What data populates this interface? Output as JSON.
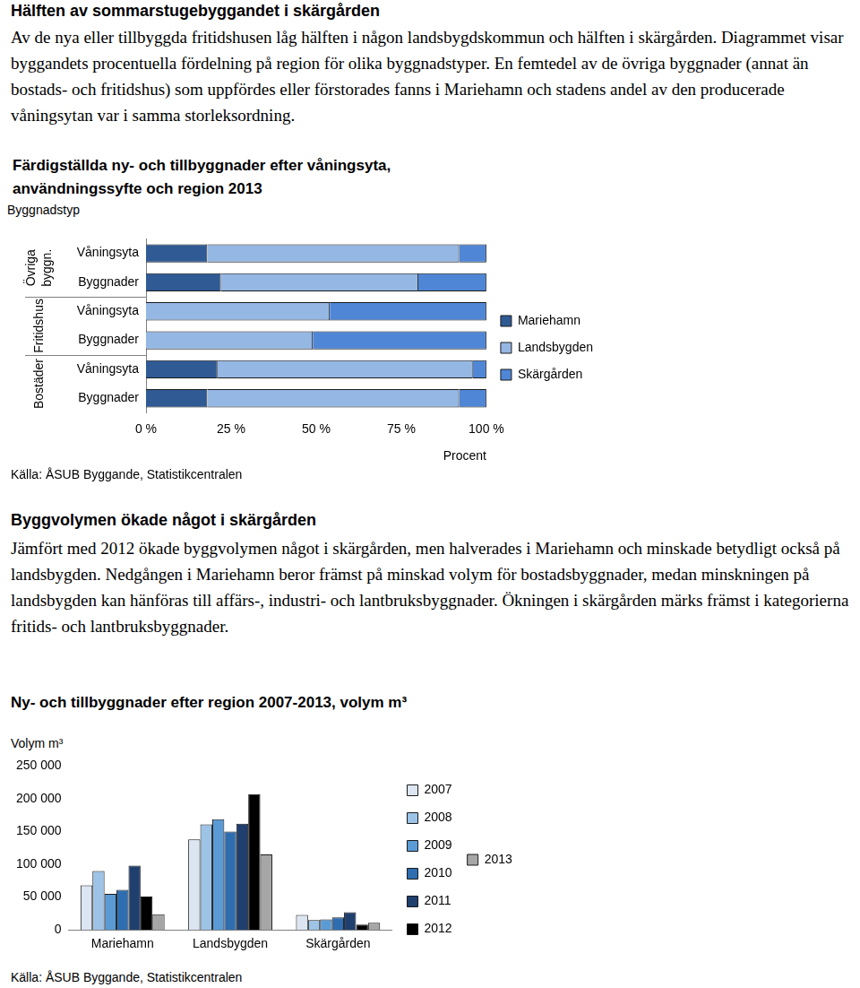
{
  "document": {
    "heading1": "Hälften av sommarstugebyggandet i skärgården",
    "paragraph1": "Av de nya eller tillbyggda fritidshusen låg hälften i någon landsbygdskommun och hälften i skärgården. Diagrammet visar byggandets procentuella fördelning på region för olika byggnadstyper. En femtedel av de övriga byggnader (annat än bostads- och fritidshus) som uppfördes eller förstorades fanns i Mariehamn och stadens andel av den producerade våningsytan var i samma storleksordning.",
    "heading2": "Byggvolymen ökade något i skärgården",
    "paragraph2": "Jämfört med 2012 ökade byggvolymen något i skärgården, men halverades i Mariehamn och minskade betydligt också på landsbygden. Nedgången i Mariehamn beror främst på minskad volym för bostadsbyggnader, medan minskningen på landsbygden kan hänföras till affärs-, industri- och lantbruksbyggnader. Ökningen i skärgården märks främst i kategorierna fritids- och lantbruksbyggnader."
  },
  "chart_data": [
    {
      "type": "bar",
      "title": [
        "Färdigställda ny- och tillbyggnader efter våningsyta,",
        "användningssyfte och region 2013"
      ],
      "ylabel": "Byggnadstyp",
      "xlabel": "Procent",
      "source": "Källa: ÅSUB Byggande, Statistikcentralen",
      "orientation": "horizontal",
      "stacked": true,
      "grid": false,
      "legend": "right",
      "categories": [
        "Våningsyta",
        "Byggnader",
        "Våningsyta",
        "Byggnader",
        "Våningsyta",
        "Byggnader"
      ],
      "groups": [
        "Övriga byggn.",
        "Övriga byggn.",
        "Fritidshus",
        "Fritidshus",
        "Bostäder",
        "Bostäder"
      ],
      "series": [
        {
          "name": "Mariehamn",
          "color": "#2f5a94",
          "values": [
            18,
            22,
            0,
            0,
            21,
            18
          ]
        },
        {
          "name": "Landsbygden",
          "color": "#95b7e3",
          "values": [
            74,
            58,
            54,
            49,
            75,
            74
          ]
        },
        {
          "name": "Skärgården",
          "color": "#4f86d6",
          "values": [
            8,
            20,
            46,
            51,
            4,
            8
          ]
        }
      ],
      "xlim": [
        0,
        100
      ],
      "xticks": [
        {
          "value": 0,
          "label": "0 %"
        },
        {
          "value": 25,
          "label": "25 %"
        },
        {
          "value": 50,
          "label": "50 %"
        },
        {
          "value": 75,
          "label": "75 %"
        },
        {
          "value": 100,
          "label": "100 %"
        }
      ]
    },
    {
      "type": "bar",
      "title": [
        "Ny- och tillbyggnader efter region 2007-2013, volym m³"
      ],
      "ylabel": "Volym m³",
      "source": "Källa: ÅSUB Byggande, Statistikcentralen",
      "grid": false,
      "legend": "right",
      "categories": [
        "Mariehamn",
        "Landsbygden",
        "Skärgården"
      ],
      "series": [
        {
          "name": "2007",
          "color": "#dce6f2",
          "values": [
            68000,
            138000,
            23000
          ]
        },
        {
          "name": "2008",
          "color": "#9dc3e6",
          "values": [
            90000,
            161000,
            15000
          ]
        },
        {
          "name": "2009",
          "color": "#5b9bd5",
          "values": [
            55000,
            169000,
            16000
          ]
        },
        {
          "name": "2010",
          "color": "#2e6db0",
          "values": [
            61000,
            150000,
            19000
          ]
        },
        {
          "name": "2011",
          "color": "#1f3f6e",
          "values": [
            98000,
            162000,
            27000
          ]
        },
        {
          "name": "2012",
          "color": "#000000",
          "values": [
            51000,
            207000,
            8000
          ]
        },
        {
          "name": "2013",
          "color": "#a6a6a6",
          "values": [
            24000,
            115000,
            11000
          ]
        }
      ],
      "ylim": [
        0,
        250000
      ],
      "yticks": [
        0,
        {
          "value": 50000,
          "label": "50 000"
        },
        {
          "value": 100000,
          "label": "100 000"
        },
        {
          "value": 150000,
          "label": "150 000"
        },
        {
          "value": 200000,
          "label": "200 000"
        },
        {
          "value": 250000,
          "label": "250 000"
        }
      ]
    }
  ]
}
